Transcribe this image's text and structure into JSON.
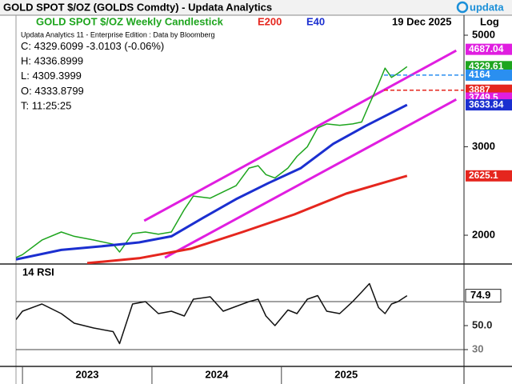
{
  "header": {
    "title": "GOLD SPOT $/OZ (GOLDS Comdty) -   Updata Analytics",
    "logo": "updata"
  },
  "chart_data": [
    {
      "type": "line",
      "log_scale": true,
      "date": "19 Dec 2025",
      "scale_label": "Log",
      "info": [
        "Updata Analytics 11 - Enterprise Edition : Data by Bloomberg",
        "C: 4329.6099  -3.0103 (-0.06%)",
        "H: 4336.8999",
        "L: 4309.3999",
        "O: 4333.8799",
        "T: 11:25:25"
      ],
      "xlim": [
        2022.95,
        2026.41
      ],
      "ylim": [
        1753,
        5460
      ],
      "yticks": [
        2000,
        3000,
        5000
      ],
      "series": [
        {
          "name": "GOLD SPOT $/OZ Weekly Candlestick",
          "color": "#1ea51e",
          "x": [
            2022.95,
            2023.0,
            2023.15,
            2023.3,
            2023.4,
            2023.55,
            2023.7,
            2023.75,
            2023.85,
            2023.95,
            2024.05,
            2024.15,
            2024.25,
            2024.32,
            2024.45,
            2024.55,
            2024.65,
            2024.75,
            2024.82,
            2024.88,
            2024.95,
            2025.05,
            2025.12,
            2025.2,
            2025.28,
            2025.35,
            2025.45,
            2025.55,
            2025.62,
            2025.68,
            2025.75,
            2025.8,
            2025.85,
            2025.9,
            2025.97
          ],
          "values": [
            1805,
            1830,
            1956,
            2030,
            1990,
            1957,
            1920,
            1852,
            2015,
            2030,
            2010,
            2030,
            2250,
            2393,
            2370,
            2440,
            2510,
            2720,
            2750,
            2640,
            2600,
            2720,
            2870,
            3000,
            3270,
            3330,
            3310,
            3330,
            3360,
            3650,
            4000,
            4300,
            4120,
            4200,
            4330
          ]
        },
        {
          "name": "E200",
          "color": "#e5261e",
          "x": [
            2023.5,
            2023.9,
            2024.3,
            2024.7,
            2025.1,
            2025.5,
            2025.97
          ],
          "values": [
            1760,
            1800,
            1880,
            2030,
            2200,
            2420,
            2625
          ]
        },
        {
          "name": "E40",
          "color": "#1b2fd0",
          "x": [
            2022.95,
            2023.3,
            2023.6,
            2023.9,
            2024.15,
            2024.4,
            2024.65,
            2024.9,
            2025.15,
            2025.4,
            2025.65,
            2025.97
          ],
          "values": [
            1790,
            1870,
            1900,
            1935,
            1990,
            2170,
            2360,
            2540,
            2720,
            3040,
            3300,
            3634
          ]
        }
      ],
      "channels": [
        {
          "color": "#e01ee0",
          "x": [
            2023.94,
            2026.35
          ],
          "values": [
            2137,
            4660
          ]
        },
        {
          "color": "#e01ee0",
          "x": [
            2024.1,
            2026.35
          ],
          "values": [
            1805,
            3725
          ]
        }
      ],
      "price_tags": [
        {
          "value": 4687.04,
          "color": "#e01ee0"
        },
        {
          "value": 4329.61,
          "color": "#1ea51e"
        },
        {
          "value": 4164,
          "color": "#2a8ff0",
          "dashed": true
        },
        {
          "value": 3887,
          "color": "#e5261e",
          "dashed": true
        },
        {
          "value": 3749.5,
          "color": "#e01ee0"
        },
        {
          "value": 3633.84,
          "color": "#1b2fd0"
        },
        {
          "value": 2625.1,
          "color": "#e5261e"
        }
      ]
    },
    {
      "type": "line",
      "title": "14 RSI",
      "xlim": [
        2022.95,
        2026.41
      ],
      "ylim": [
        16,
        100
      ],
      "yticks": [
        {
          "value": 50,
          "label": "50.0"
        },
        30
      ],
      "hlines": [
        70,
        30
      ],
      "xticks": [
        2023,
        2024,
        2025
      ],
      "series": [
        {
          "color": "#111111",
          "x": [
            2022.95,
            2023.0,
            2023.15,
            2023.3,
            2023.4,
            2023.55,
            2023.7,
            2023.75,
            2023.85,
            2023.95,
            2024.05,
            2024.15,
            2024.25,
            2024.32,
            2024.45,
            2024.55,
            2024.65,
            2024.75,
            2024.82,
            2024.88,
            2024.95,
            2025.05,
            2025.12,
            2025.2,
            2025.28,
            2025.35,
            2025.45,
            2025.55,
            2025.62,
            2025.68,
            2025.75,
            2025.8,
            2025.85,
            2025.9,
            2025.97
          ],
          "values": [
            55,
            62,
            68,
            60,
            52,
            48,
            45,
            35,
            68,
            70,
            60,
            62,
            58,
            72,
            74,
            62,
            66,
            70,
            72,
            58,
            50,
            63,
            60,
            72,
            75,
            62,
            60,
            70,
            78,
            85,
            65,
            60,
            68,
            70,
            74.9
          ]
        }
      ]
    }
  ]
}
